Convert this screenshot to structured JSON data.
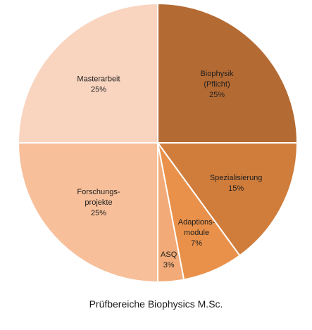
{
  "chart_data": {
    "type": "pie",
    "title": "Prüfbereiche Biophysics M.Sc.",
    "slices": [
      {
        "label": [
          "Biophysik",
          "(Pflicht)"
        ],
        "value": 25,
        "display": "25%",
        "color": "#b46a33"
      },
      {
        "label": [
          "Spezialisierung"
        ],
        "value": 15,
        "display": "15%",
        "color": "#d07d3c"
      },
      {
        "label": [
          "Adaptions-",
          "module"
        ],
        "value": 7,
        "display": "7%",
        "color": "#e9914a"
      },
      {
        "label": [
          "ASQ"
        ],
        "value": 3,
        "display": "3%",
        "color": "#f2aa78"
      },
      {
        "label": [
          "Forschungs-",
          "projekte"
        ],
        "value": 25,
        "display": "25%",
        "color": "#f7bf9a"
      },
      {
        "label": [
          "Masterarbeit"
        ],
        "value": 25,
        "display": "25%",
        "color": "#f9d5c0"
      }
    ],
    "start": "12 o'clock",
    "direction": "clockwise"
  }
}
